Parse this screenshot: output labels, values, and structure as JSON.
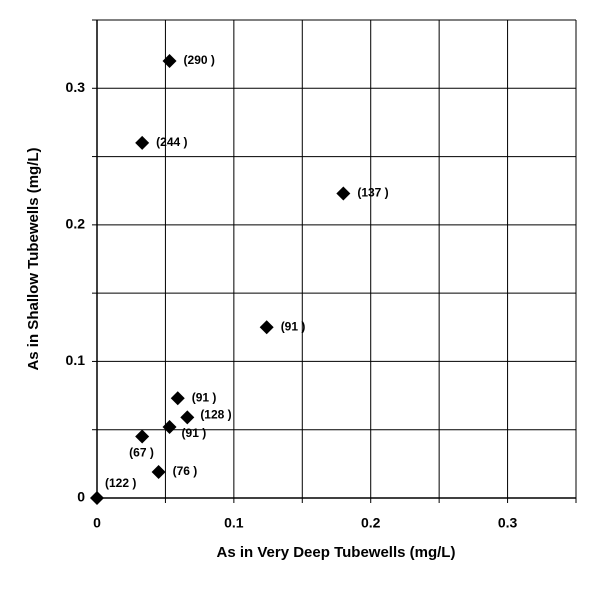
{
  "chart_data": {
    "type": "scatter",
    "x_label": "As in Very Deep Tubewells (mg/L)",
    "y_label": "As in Shallow Tubewells (mg/L)",
    "x": [
      0.053,
      0.033,
      0.18,
      0.124,
      0.059,
      0.066,
      0.053,
      0.033,
      0.045,
      0
    ],
    "y": [
      0.32,
      0.26,
      0.223,
      0.125,
      0.073,
      0.059,
      0.052,
      0.045,
      0.019,
      0
    ],
    "point_labels": [
      "(290 )",
      "(244 )",
      "(137 )",
      "(91 )",
      "(91 )",
      "(128 )",
      "(91 )",
      "(67 )",
      "(76 )",
      "(122 )"
    ],
    "color": "#000000",
    "xlim": [
      0,
      0.35
    ],
    "ylim": [
      0,
      0.35
    ],
    "xticks": [
      0,
      0.1,
      0.2,
      0.3
    ],
    "yticks": [
      0,
      0.1,
      0.2,
      0.3
    ],
    "xgrid": [
      0.05,
      0.1,
      0.15,
      0.2,
      0.25,
      0.3,
      0.35
    ],
    "ygrid": [
      0.05,
      0.1,
      0.15,
      0.2,
      0.25,
      0.3,
      0.35
    ],
    "grid": true
  }
}
